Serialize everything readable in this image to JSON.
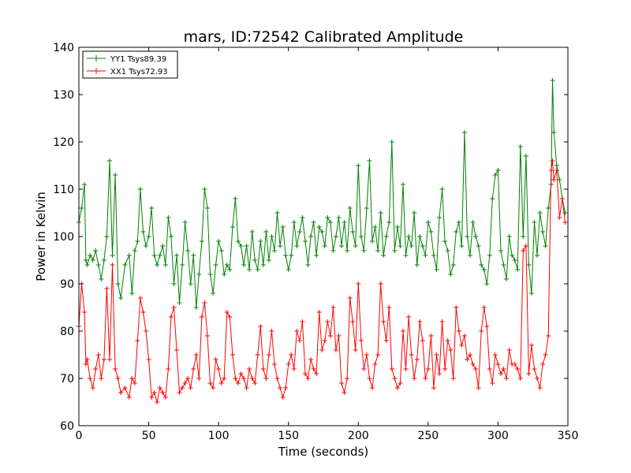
{
  "chart_data": {
    "type": "line",
    "title": "mars, ID:72542 Calibrated Amplitude",
    "xlabel": "Time (seconds)",
    "ylabel": "Power in Kelvin",
    "xlim": [
      0,
      350
    ],
    "ylim": [
      60,
      140
    ],
    "xticks": [
      0,
      50,
      100,
      150,
      200,
      250,
      300,
      350
    ],
    "yticks": [
      60,
      70,
      80,
      90,
      100,
      110,
      120,
      130,
      140
    ],
    "grid": false,
    "legend_position": "top-left",
    "marker": "plus",
    "series": [
      {
        "name": "YY1 Tsys89.39",
        "color": "#008000",
        "x": [
          0,
          2,
          4,
          5,
          6,
          8,
          10,
          12,
          14,
          16,
          18,
          20,
          22,
          24,
          26,
          28,
          30,
          33,
          36,
          38,
          40,
          42,
          44,
          46,
          48,
          50,
          52,
          54,
          56,
          58,
          60,
          62,
          64,
          66,
          68,
          70,
          72,
          74,
          76,
          78,
          80,
          82,
          84,
          86,
          88,
          90,
          92,
          94,
          96,
          98,
          100,
          102,
          104,
          106,
          108,
          110,
          112,
          114,
          116,
          118,
          120,
          122,
          124,
          126,
          128,
          130,
          132,
          134,
          136,
          138,
          140,
          142,
          144,
          146,
          148,
          150,
          152,
          154,
          156,
          158,
          160,
          162,
          164,
          166,
          168,
          170,
          172,
          174,
          176,
          178,
          180,
          182,
          184,
          186,
          188,
          190,
          192,
          194,
          196,
          198,
          200,
          202,
          204,
          206,
          208,
          210,
          212,
          214,
          216,
          218,
          220,
          222,
          224,
          226,
          228,
          230,
          232,
          234,
          236,
          238,
          240,
          242,
          244,
          246,
          248,
          250,
          252,
          254,
          256,
          258,
          260,
          262,
          264,
          266,
          268,
          270,
          272,
          274,
          276,
          278,
          280,
          282,
          284,
          286,
          288,
          290,
          292,
          294,
          296,
          298,
          300,
          302,
          304,
          306,
          308,
          310,
          312,
          314,
          316,
          318,
          320,
          322,
          324,
          326,
          328,
          330,
          332,
          334,
          336,
          338,
          339,
          340,
          342,
          344,
          346,
          348
        ],
        "values": [
          103,
          106,
          111,
          95,
          94,
          96,
          95,
          97,
          94,
          91,
          95,
          100,
          116,
          96,
          113,
          90,
          87,
          94,
          96,
          88,
          97,
          99,
          110,
          101,
          98,
          100,
          106,
          96,
          94,
          96,
          98,
          94,
          104,
          100,
          90,
          96,
          86,
          94,
          103,
          97,
          90,
          96,
          85,
          92,
          99,
          110,
          106,
          92,
          88,
          94,
          99,
          97,
          92,
          94,
          93,
          102,
          108,
          99,
          98,
          94,
          98,
          93,
          101,
          95,
          93,
          99,
          94,
          101,
          95,
          100,
          97,
          105,
          98,
          102,
          96,
          93,
          96,
          103,
          98,
          101,
          104,
          99,
          94,
          100,
          103,
          96,
          102,
          101,
          98,
          104,
          103,
          97,
          100,
          104,
          98,
          103,
          97,
          106,
          101,
          98,
          115,
          100,
          97,
          106,
          116,
          99,
          102,
          97,
          105,
          96,
          100,
          103,
          120,
          97,
          102,
          98,
          111,
          96,
          100,
          98,
          105,
          94,
          100,
          98,
          96,
          103,
          101,
          96,
          93,
          104,
          110,
          99,
          97,
          92,
          94,
          101,
          103,
          98,
          122,
          100,
          96,
          103,
          100,
          98,
          94,
          93,
          90,
          96,
          108,
          113,
          114,
          97,
          94,
          91,
          100,
          96,
          95,
          93,
          119,
          100,
          117,
          94,
          88,
          103,
          96,
          105,
          101,
          98,
          106,
          111,
          133,
          122,
          115,
          112,
          108,
          105
        ]
      },
      {
        "name": "XX1 Tsys72.93",
        "color": "#ff0000",
        "x": [
          0,
          2,
          4,
          5,
          6,
          8,
          10,
          12,
          14,
          16,
          18,
          20,
          22,
          24,
          26,
          28,
          30,
          33,
          36,
          38,
          40,
          42,
          44,
          46,
          48,
          50,
          52,
          54,
          56,
          58,
          60,
          62,
          64,
          66,
          68,
          70,
          72,
          74,
          76,
          78,
          80,
          82,
          84,
          86,
          88,
          90,
          92,
          94,
          96,
          98,
          100,
          102,
          104,
          106,
          108,
          110,
          112,
          114,
          116,
          118,
          120,
          122,
          124,
          126,
          128,
          130,
          132,
          134,
          136,
          138,
          140,
          142,
          144,
          146,
          148,
          150,
          152,
          154,
          156,
          158,
          160,
          162,
          164,
          166,
          168,
          170,
          172,
          174,
          176,
          178,
          180,
          182,
          184,
          186,
          188,
          190,
          192,
          194,
          196,
          198,
          200,
          202,
          204,
          206,
          208,
          210,
          212,
          214,
          216,
          218,
          220,
          222,
          224,
          226,
          228,
          230,
          232,
          234,
          236,
          238,
          240,
          242,
          244,
          246,
          248,
          250,
          252,
          254,
          256,
          258,
          260,
          262,
          264,
          266,
          268,
          270,
          272,
          274,
          276,
          278,
          280,
          282,
          284,
          286,
          288,
          290,
          292,
          294,
          296,
          298,
          300,
          302,
          304,
          306,
          308,
          310,
          312,
          314,
          316,
          318,
          320,
          322,
          324,
          326,
          328,
          330,
          332,
          334,
          336,
          338,
          339,
          340,
          342,
          344,
          346,
          348
        ],
        "values": [
          81,
          90,
          84,
          73,
          74,
          70,
          68,
          72,
          75,
          70,
          74,
          89,
          74,
          94,
          72,
          70,
          67,
          68,
          66,
          70,
          69,
          78,
          87,
          84,
          80,
          74,
          66,
          67,
          65,
          68,
          67,
          66,
          72,
          83,
          85,
          76,
          67,
          68,
          69,
          70,
          68,
          72,
          75,
          70,
          83,
          86,
          79,
          69,
          68,
          74,
          72,
          69,
          70,
          84,
          83,
          75,
          70,
          69,
          71,
          70,
          68,
          72,
          70,
          69,
          75,
          81,
          72,
          70,
          75,
          80,
          73,
          70,
          68,
          66,
          68,
          73,
          75,
          72,
          80,
          78,
          82,
          71,
          70,
          74,
          72,
          71,
          84,
          76,
          78,
          82,
          79,
          85,
          76,
          79,
          69,
          67,
          70,
          87,
          82,
          76,
          90,
          78,
          72,
          75,
          70,
          68,
          73,
          75,
          90,
          82,
          78,
          85,
          72,
          70,
          68,
          69,
          80,
          72,
          83,
          75,
          70,
          74,
          82,
          78,
          70,
          72,
          79,
          68,
          75,
          71,
          82,
          72,
          78,
          76,
          70,
          85,
          80,
          77,
          79,
          74,
          75,
          73,
          72,
          68,
          80,
          85,
          81,
          72,
          69,
          75,
          73,
          71,
          72,
          70,
          76,
          73,
          73,
          72,
          70,
          97,
          98,
          71,
          77,
          72,
          70,
          68,
          73,
          75,
          79,
          114,
          116,
          112,
          114,
          104,
          108,
          103
        ]
      }
    ]
  }
}
